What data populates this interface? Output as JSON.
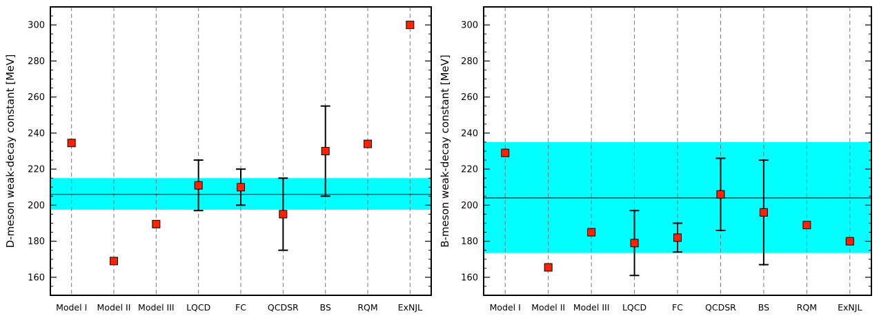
{
  "chart_data": [
    {
      "type": "scatter",
      "ylabel": "D-meson weak-decay constant  [MeV]",
      "categories": [
        "Model I",
        "Model II",
        "Model III",
        "LQCD",
        "FC",
        "QCDSR",
        "BS",
        "RQM",
        "ExNJL"
      ],
      "values": [
        234.5,
        169,
        189.5,
        211,
        210,
        195,
        230,
        234,
        300
      ],
      "err_low": [
        null,
        null,
        null,
        197,
        200,
        175,
        205,
        null,
        null
      ],
      "err_high": [
        null,
        null,
        null,
        225,
        220,
        215,
        255,
        null,
        null
      ],
      "band": [
        197.5,
        215
      ],
      "mean_line": 206,
      "ylim": [
        150,
        310
      ],
      "yticks": [
        160,
        180,
        200,
        220,
        240,
        260,
        280,
        300
      ],
      "grid": "vertical dashed",
      "colors": {
        "marker": "#ff2200",
        "band": "#00ffff",
        "errbar": "#000000"
      }
    },
    {
      "type": "scatter",
      "ylabel": "B-meson weak-decay constant  [MeV]",
      "categories": [
        "Model I",
        "Model II",
        "Model III",
        "LQCD",
        "FC",
        "QCDSR",
        "BS",
        "RQM",
        "ExNJL"
      ],
      "values": [
        229,
        165.5,
        185,
        179,
        182,
        206,
        196,
        189,
        180
      ],
      "err_low": [
        null,
        null,
        null,
        161,
        174,
        186,
        167,
        null,
        null
      ],
      "err_high": [
        null,
        null,
        null,
        197,
        190,
        226,
        225,
        null,
        null
      ],
      "band": [
        173.5,
        235
      ],
      "mean_line": 204,
      "ylim": [
        150,
        310
      ],
      "yticks": [
        160,
        180,
        200,
        220,
        240,
        260,
        280,
        300
      ],
      "grid": "vertical dashed",
      "colors": {
        "marker": "#ff2200",
        "band": "#00ffff",
        "errbar": "#000000"
      }
    }
  ]
}
